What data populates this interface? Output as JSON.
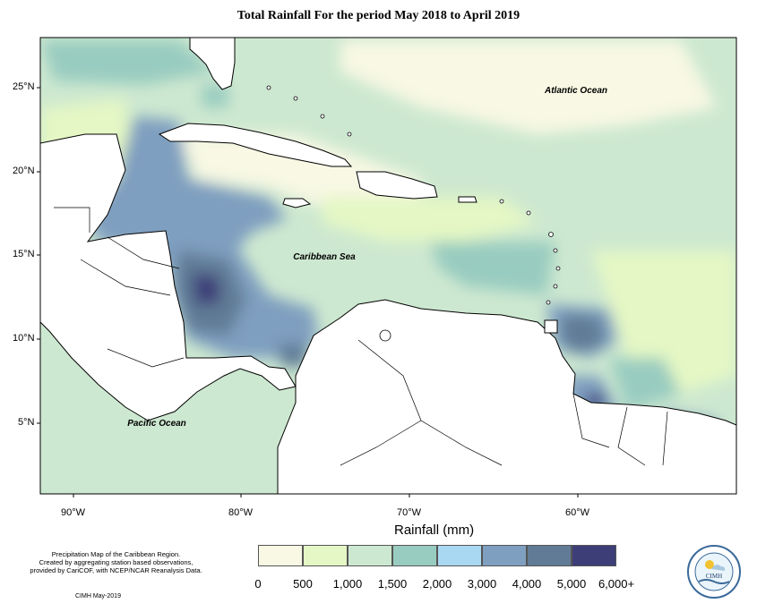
{
  "title": "Total Rainfall For the period May 2018 to April 2019",
  "map": {
    "labels": {
      "atlantic": "Atlantic Ocean",
      "caribbean": "Caribbean Sea",
      "pacific": "Pacific Ocean"
    },
    "lat_ticks": [
      "25°N",
      "20°N",
      "15°N",
      "10°N",
      "5°N"
    ],
    "lon_ticks": [
      "90°W",
      "80°W",
      "70°W",
      "60°W"
    ]
  },
  "legend": {
    "title": "Rainfall (mm)",
    "colors": [
      "#f8f8e4",
      "#e4f7c4",
      "#cde8d0",
      "#99ccc0",
      "#a9d8f2",
      "#7f9fc0",
      "#617b96",
      "#3d3e78"
    ],
    "ticks": [
      "0",
      "500",
      "1,000",
      "1,500",
      "2,000",
      "3,000",
      "4,000",
      "5,000",
      "6,000+"
    ]
  },
  "footer": {
    "note_line1": "Precipitation Map of the Caribbean Region.",
    "note_line2": "Created by aggregating station based observations,",
    "note_line3": "provided by CariCOF, with NCEP/NCAR Reanalysis Data.",
    "credit": "CIMH May-2019",
    "logo_text": "CIMH"
  }
}
